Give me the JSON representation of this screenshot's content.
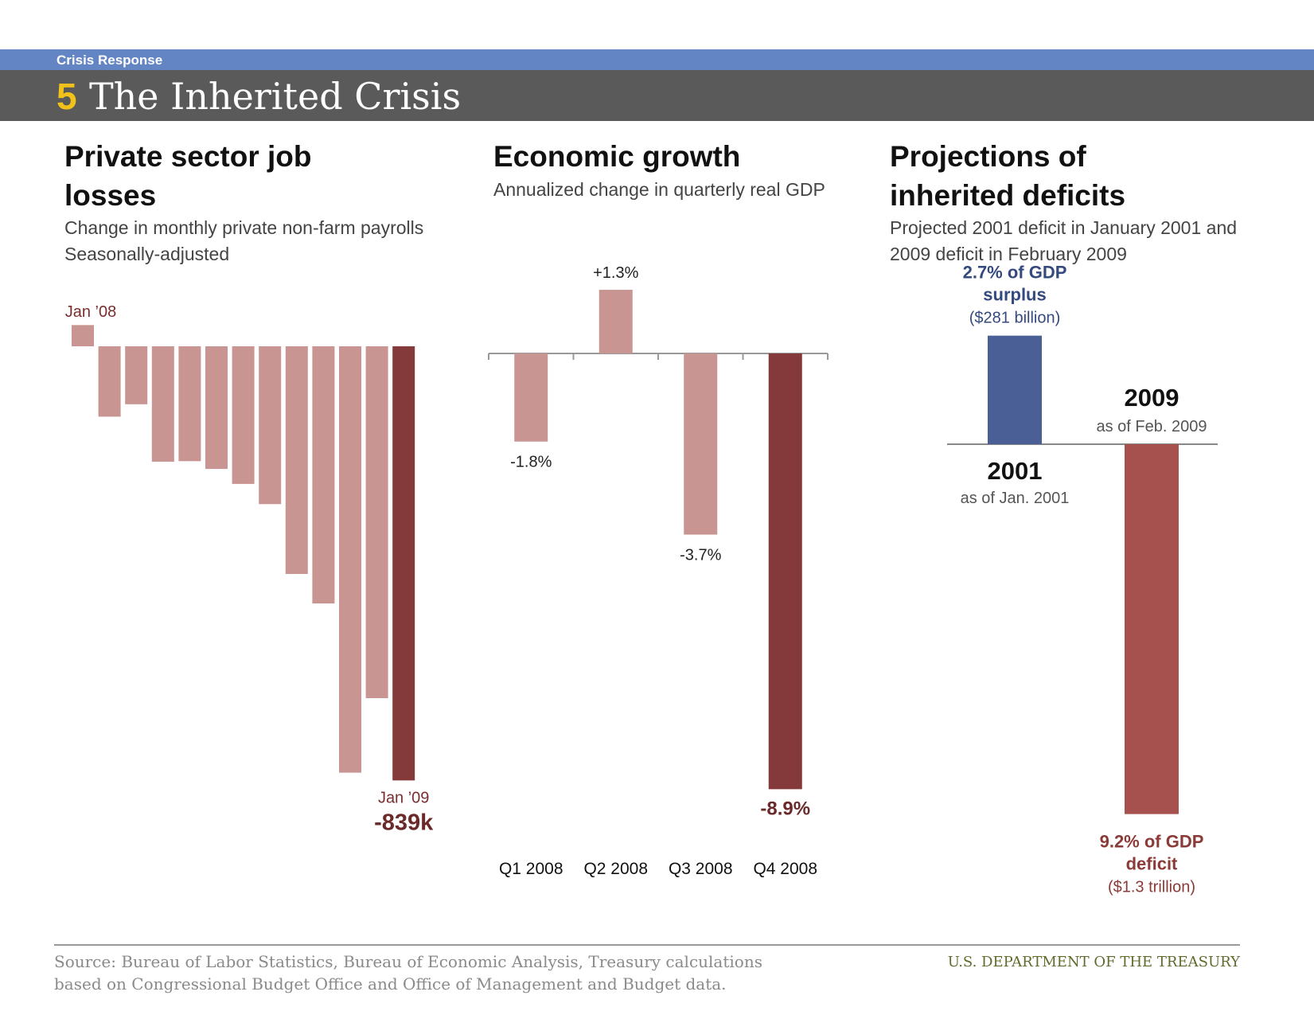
{
  "header": {
    "section": "Crisis Response",
    "number": "5",
    "title": "The Inherited Crisis"
  },
  "panel1": {
    "title_line1": "Private sector job",
    "title_line2": "losses",
    "sub1": "Change in monthly private non-farm payrolls",
    "sub2": "Seasonally-adjusted"
  },
  "panel2": {
    "title": "Economic growth",
    "sub": "Annualized change in quarterly real GDP"
  },
  "panel3": {
    "title_line1": "Projections of",
    "title_line2": "inherited deficits",
    "sub1": "Projected 2001 deficit in January 2001 and",
    "sub2": "2009 deficit in February 2009"
  },
  "footer": {
    "source1": "Source: Bureau of Labor Statistics, Bureau of Economic Analysis, Treasury calculations",
    "source2": "based on Congressional Budget Office and Office of Management and Budget data.",
    "dept": "U.S. DEPARTMENT OF THE TREASURY"
  },
  "colors": {
    "light_bar": "#c99592",
    "dark_bar": "#84393a",
    "surplus": "#4a5f96",
    "deficit": "#a6514e",
    "header_blue": "#6485c4",
    "yellow": "#f2c21a"
  },
  "chart_data": [
    {
      "type": "bar",
      "title": "Private sector job losses",
      "subtitle": "Change in monthly private non-farm payrolls Seasonally-adjusted",
      "values_k": [
        41,
        -136,
        -112,
        -223,
        -222,
        -237,
        -266,
        -305,
        -440,
        -497,
        -824,
        -680,
        -839
      ],
      "first_label": "Jan ’08",
      "last_label": "Jan ’09",
      "last_value_label": "-839k"
    },
    {
      "type": "bar",
      "title": "Economic growth",
      "subtitle": "Annualized change in quarterly real GDP",
      "categories": [
        "Q1 2008",
        "Q2 2008",
        "Q3 2008",
        "Q4 2008"
      ],
      "values": [
        -1.8,
        1.3,
        -3.7,
        -8.9
      ],
      "value_labels": [
        "-1.8%",
        "+1.3%",
        "-3.7%",
        "-8.9%"
      ]
    },
    {
      "type": "bar",
      "title": "Projections of inherited deficits",
      "subtitle": "Projected 2001 deficit in January 2001 and 2009 deficit in February 2009",
      "categories": [
        "2001",
        "2009"
      ],
      "category_notes": [
        "as of Jan. 2001",
        "as of Feb. 2009"
      ],
      "values_pct_gdp": [
        2.7,
        -9.2
      ],
      "label_lines1": [
        "2.7% of GDP",
        "9.2% of GDP"
      ],
      "label_lines2": [
        "surplus",
        "deficit"
      ],
      "label_lines3": [
        "($281 billion)",
        "($1.3 trillion)"
      ]
    }
  ]
}
